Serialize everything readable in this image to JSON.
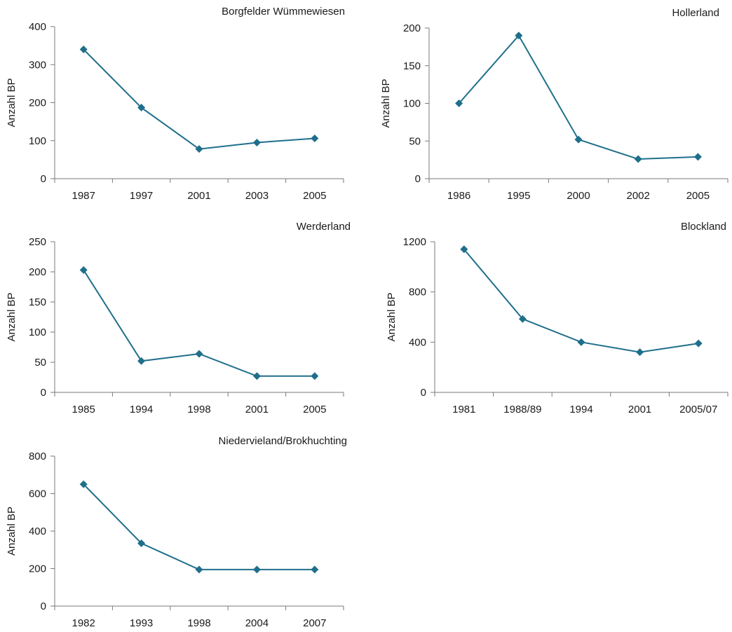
{
  "chart_data": [
    {
      "type": "line",
      "title": "Borgfelder Wümmewiesen",
      "ylabel": "Anzahl BP",
      "xlabel": "",
      "categories": [
        "1987",
        "1997",
        "2001",
        "2003",
        "2005"
      ],
      "values": [
        340,
        187,
        78,
        95,
        106
      ],
      "ylim": [
        0,
        400
      ],
      "yticks": [
        0,
        100,
        200,
        300,
        400
      ],
      "grid": false,
      "legend": "none"
    },
    {
      "type": "line",
      "title": "Hollerland",
      "ylabel": "Anzahl BP",
      "xlabel": "",
      "categories": [
        "1986",
        "1995",
        "2000",
        "2002",
        "2005"
      ],
      "values": [
        100,
        190,
        52,
        26,
        29
      ],
      "ylim": [
        0,
        200
      ],
      "yticks": [
        0,
        50,
        100,
        150,
        200
      ],
      "grid": false,
      "legend": "none"
    },
    {
      "type": "line",
      "title": "Werderland",
      "ylabel": "Anzahl BP",
      "xlabel": "",
      "categories": [
        "1985",
        "1994",
        "1998",
        "2001",
        "2005"
      ],
      "values": [
        203,
        52,
        64,
        27,
        27
      ],
      "ylim": [
        0,
        250
      ],
      "yticks": [
        0,
        50,
        100,
        150,
        200,
        250
      ],
      "grid": false,
      "legend": "none"
    },
    {
      "type": "line",
      "title": "Blockland",
      "ylabel": "Anzahl BP",
      "xlabel": "",
      "categories": [
        "1981",
        "1988/89",
        "1994",
        "2001",
        "2005/07"
      ],
      "values": [
        1140,
        585,
        400,
        320,
        390
      ],
      "ylim": [
        0,
        1200
      ],
      "yticks": [
        0,
        400,
        800,
        1200
      ],
      "grid": false,
      "legend": "none"
    },
    {
      "type": "line",
      "title": "Niedervieland/Brokhuchting",
      "ylabel": "Anzahl BP",
      "xlabel": "",
      "categories": [
        "1982",
        "1993",
        "1998",
        "2004",
        "2007"
      ],
      "values": [
        650,
        335,
        195,
        195,
        195
      ],
      "ylim": [
        0,
        800
      ],
      "yticks": [
        0,
        200,
        400,
        600,
        800
      ],
      "grid": false,
      "legend": "none"
    }
  ],
  "colors": {
    "series": "#1f6f8b",
    "axis": "#7a7a7a",
    "text": "#1a1a1a"
  }
}
